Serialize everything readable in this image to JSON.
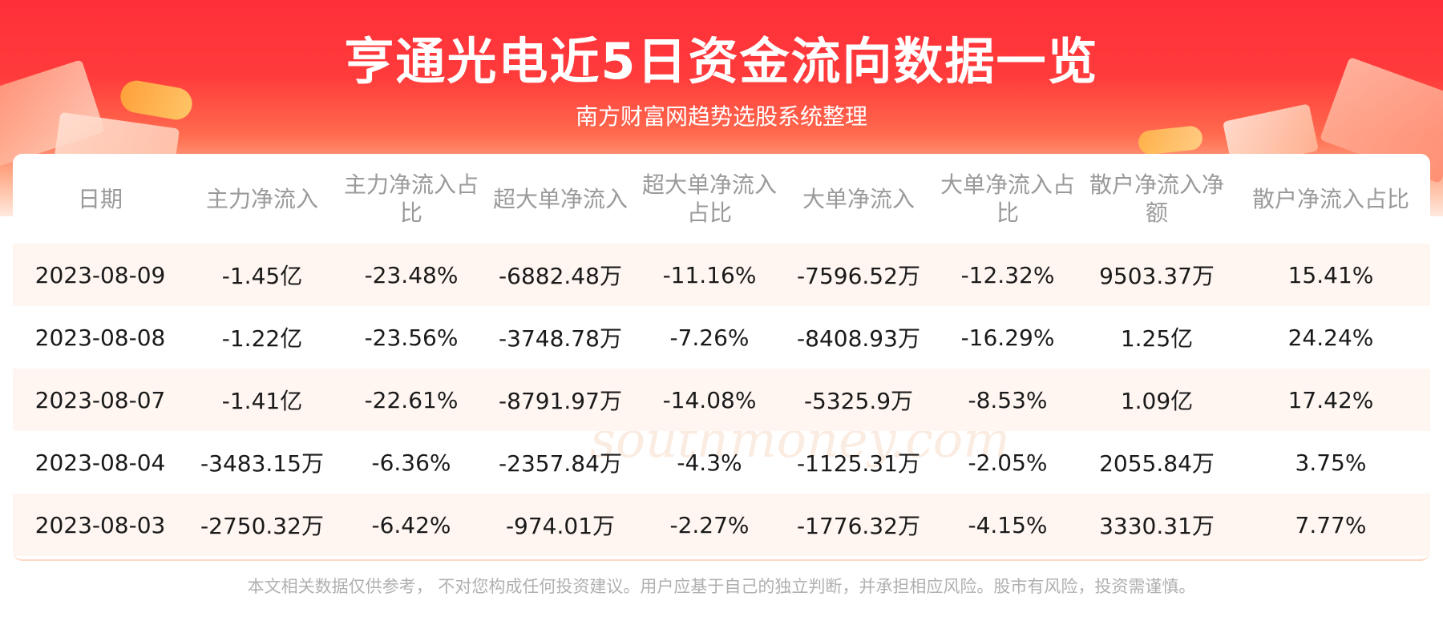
{
  "header": {
    "title": "亨通光电近5日资金流向数据一览",
    "subtitle": "南方财富网趋势选股系统整理"
  },
  "watermark": {
    "cn": "南方财富网",
    "en": "southmoney.com"
  },
  "table": {
    "columns": [
      "日期",
      "主力净流入",
      "主力净流入占比",
      "超大单净流入",
      "超大单净流入占比",
      "大单净流入",
      "大单净流入占比",
      "散户净流入净额",
      "散户净流入占比"
    ],
    "rows": [
      [
        "2023-08-09",
        "-1.45亿",
        "-23.48%",
        "-6882.48万",
        "-11.16%",
        "-7596.52万",
        "-12.32%",
        "9503.37万",
        "15.41%"
      ],
      [
        "2023-08-08",
        "-1.22亿",
        "-23.56%",
        "-3748.78万",
        "-7.26%",
        "-8408.93万",
        "-16.29%",
        "1.25亿",
        "24.24%"
      ],
      [
        "2023-08-07",
        "-1.41亿",
        "-22.61%",
        "-8791.97万",
        "-14.08%",
        "-5325.9万",
        "-8.53%",
        "1.09亿",
        "17.42%"
      ],
      [
        "2023-08-04",
        "-3483.15万",
        "-6.36%",
        "-2357.84万",
        "-4.3%",
        "-1125.31万",
        "-2.05%",
        "2055.84万",
        "3.75%"
      ],
      [
        "2023-08-03",
        "-2750.32万",
        "-6.42%",
        "-974.01万",
        "-2.27%",
        "-1776.32万",
        "-4.15%",
        "3330.31万",
        "7.77%"
      ]
    ]
  },
  "footer": {
    "disclaimer": "本文相关数据仅供参考， 不对您构成任何投资建议。用户应基于自己的独立判断，并承担相应风险。股市有风险，投资需谨慎。"
  },
  "colors": {
    "banner_red": "#ff2f3a",
    "row_stripe": "#fff6f1",
    "header_text": "#9a9a9a",
    "body_text": "#1a1a1a"
  }
}
